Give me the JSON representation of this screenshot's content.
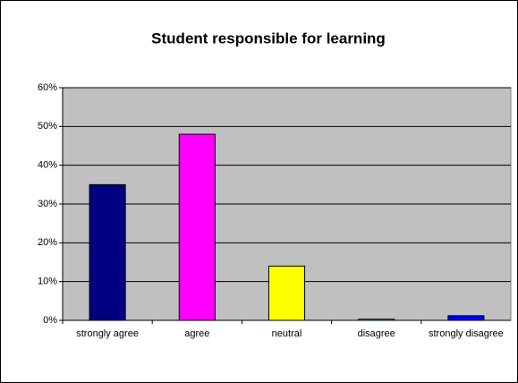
{
  "chart_data": {
    "type": "bar",
    "title": "Student responsible for learning",
    "categories": [
      "strongly agree",
      "agree",
      "neutral",
      "disagree",
      "strongly disagree"
    ],
    "values": [
      35,
      48,
      14,
      0.3,
      1.2
    ],
    "colors": [
      "#000080",
      "#ff00ff",
      "#ffff00",
      "#00ffff",
      "#0000ff"
    ],
    "ylim": [
      0,
      60
    ],
    "yticks": [
      {
        "value": 0,
        "label": "0%"
      },
      {
        "value": 10,
        "label": "10%"
      },
      {
        "value": 20,
        "label": "20%"
      },
      {
        "value": 30,
        "label": "30%"
      },
      {
        "value": 40,
        "label": "40%"
      },
      {
        "value": 50,
        "label": "50%"
      },
      {
        "value": 60,
        "label": "60%"
      }
    ],
    "grid": true
  }
}
